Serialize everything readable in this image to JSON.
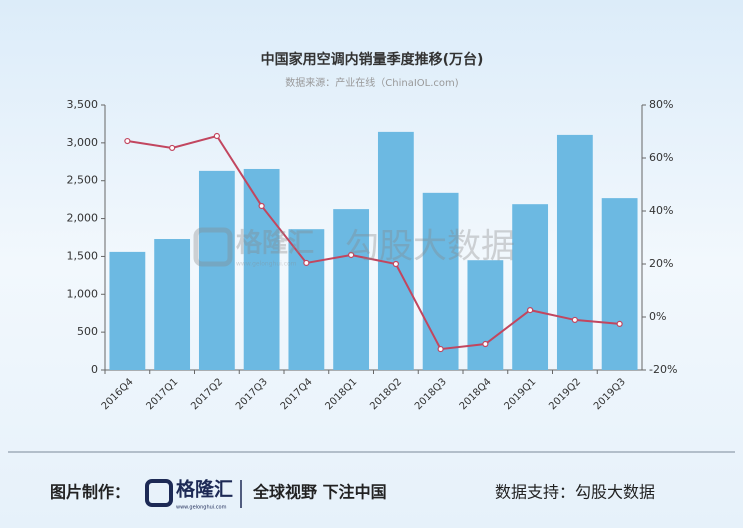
{
  "chart_data": {
    "type": "bar_line",
    "title": "中国家用空调内销量季度推移(万台)",
    "subtitle": "数据来源：产业在线（ChinaIOL.com)",
    "categories": [
      "2016Q4",
      "2017Q1",
      "2017Q2",
      "2017Q3",
      "2017Q4",
      "2018Q1",
      "2018Q2",
      "2018Q3",
      "2018Q4",
      "2019Q1",
      "2019Q2",
      "2019Q3"
    ],
    "series": [
      {
        "type": "bar",
        "color": "#6cb9e2",
        "values": [
          1560,
          1730,
          2630,
          2655,
          1860,
          2125,
          3145,
          2340,
          1450,
          2190,
          3105,
          2270
        ]
      },
      {
        "type": "line",
        "axis": "y2",
        "color": "#c2465f",
        "values": [
          66.4,
          63.8,
          68.3,
          41.9,
          20.4,
          23.4,
          20.0,
          -12.1,
          -10.2,
          2.6,
          -1.1,
          -2.6
        ]
      }
    ],
    "ylim": [
      0,
      3500
    ],
    "yticks": [
      0,
      500,
      {
        "value": 1000,
        "label": "1,000"
      },
      {
        "value": 1500,
        "label": "1,500"
      },
      {
        "value": 2000,
        "label": "2,000"
      },
      {
        "value": 2500,
        "label": "2,500"
      },
      {
        "value": 3000,
        "label": "3,000"
      },
      {
        "value": 3500,
        "label": "3,500"
      }
    ],
    "y2lim": [
      -20,
      80
    ],
    "y2ticks": [
      {
        "value": -20,
        "label": "-20%"
      },
      {
        "value": 0,
        "label": "0%"
      },
      {
        "value": 20,
        "label": "20%"
      },
      {
        "value": 40,
        "label": "40%"
      },
      {
        "value": 60,
        "label": "60%"
      },
      {
        "value": 80,
        "label": "80%"
      }
    ],
    "watermark": {
      "logo": "格隆汇",
      "url": "www.gelonghui.com",
      "brand": "勾股大数据"
    }
  },
  "footer": {
    "made_by": "图片制作：",
    "logo": "格隆汇",
    "url": "www.gelonghui.com",
    "slogan": "全球视野 下注中国",
    "data_support": "数据支持：勾股大数据"
  }
}
